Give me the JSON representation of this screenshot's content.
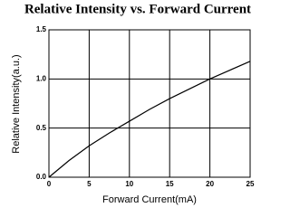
{
  "chart_data": {
    "type": "line",
    "title": "Relative Intensity vs. Forward Current",
    "x_label": "Forward Current(mA)",
    "y_label": "Relative Intensity(a.u.)",
    "x": [
      0,
      2.5,
      5,
      7.5,
      10,
      12.5,
      15,
      17.5,
      20,
      22.5,
      25
    ],
    "series": [
      {
        "name": "Relative Intensity",
        "color": "#000000",
        "values": [
          0,
          0.17,
          0.32,
          0.45,
          0.57,
          0.69,
          0.8,
          0.9,
          1.0,
          1.09,
          1.18
        ]
      }
    ],
    "xlim": [
      0,
      25
    ],
    "xticks": [
      0,
      5,
      10,
      15,
      20,
      25
    ],
    "ylim": [
      0,
      1.5
    ],
    "yticks": [
      {
        "value": 0,
        "label": "0.0"
      },
      {
        "value": 0.5,
        "label": "0.5"
      },
      {
        "value": 1,
        "label": "1.0"
      },
      {
        "value": 1.5,
        "label": "1.5"
      }
    ],
    "grid": true
  }
}
